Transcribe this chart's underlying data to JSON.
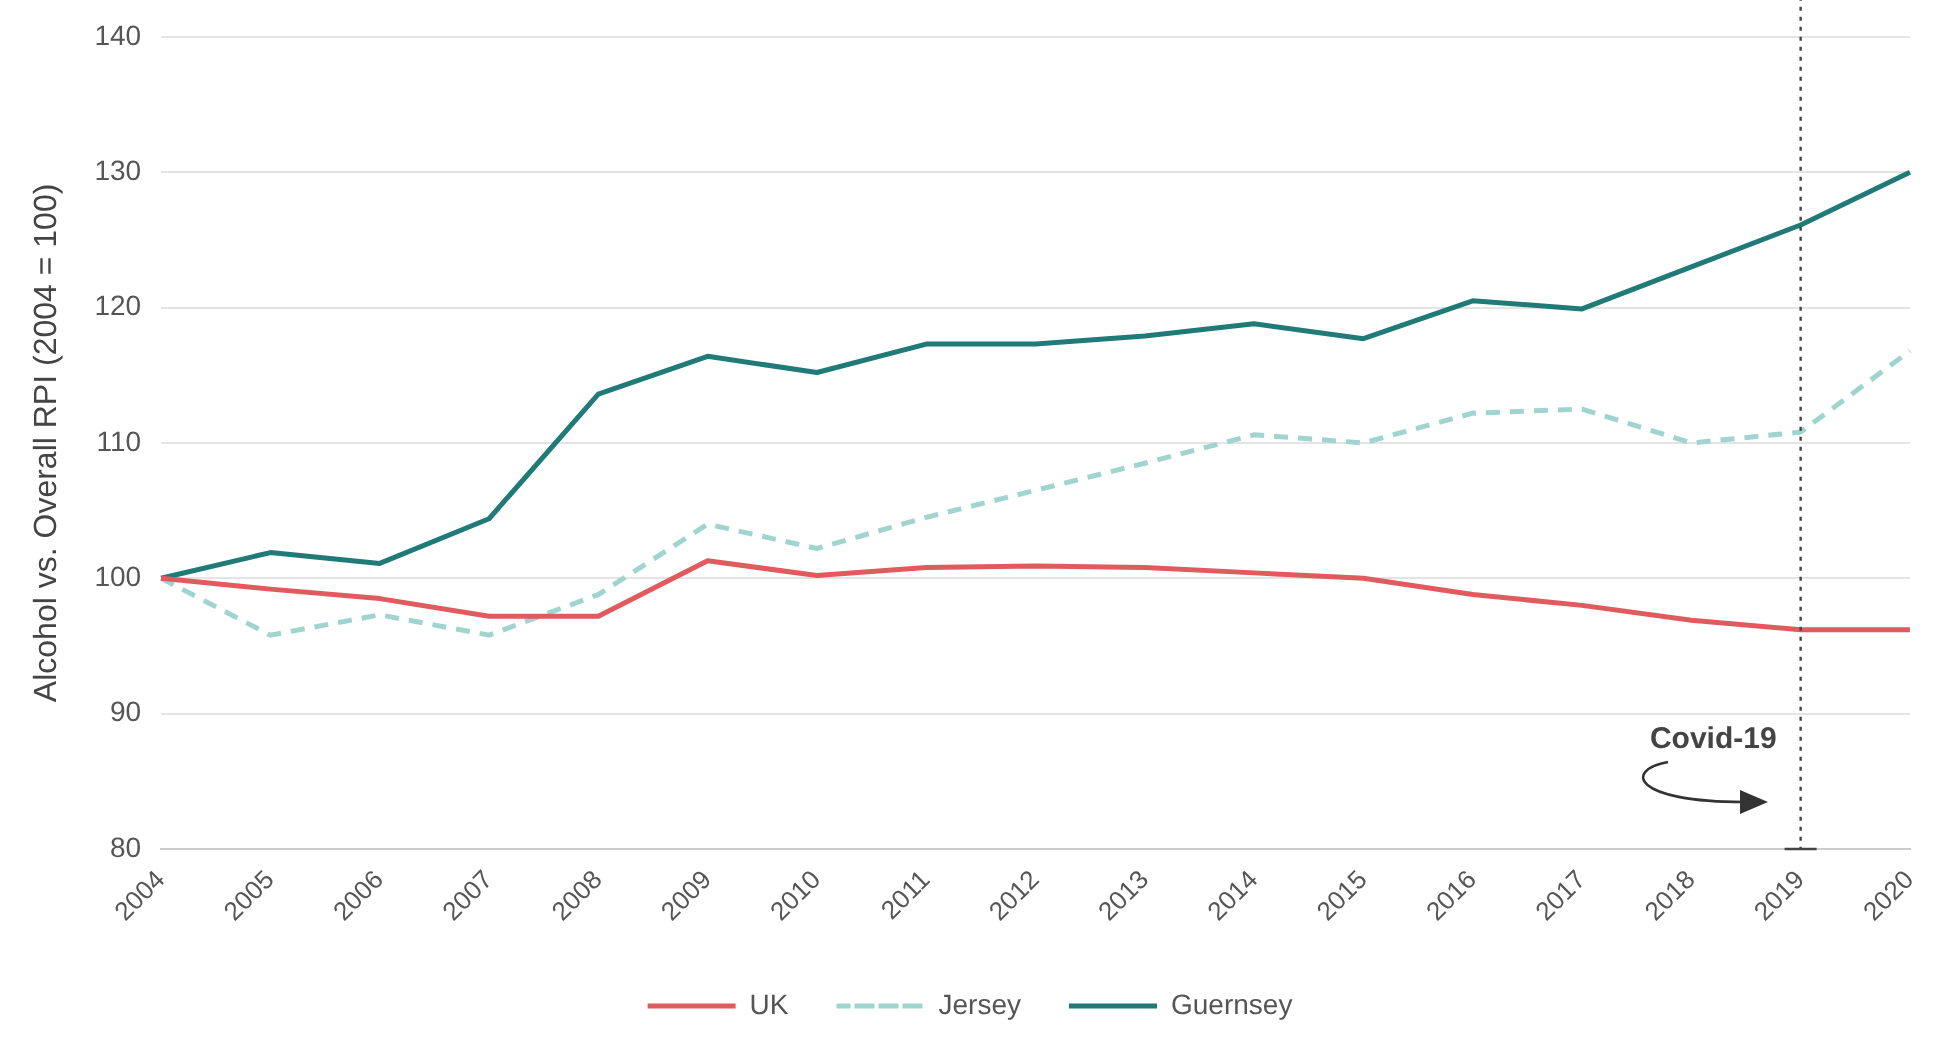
{
  "chart_data": {
    "type": "line",
    "ylabel": "Alcohol vs. Overall RPI (2004 = 100)",
    "categories": [
      "2004",
      "2005",
      "2006",
      "2007",
      "2008",
      "2009",
      "2010",
      "2011",
      "2012",
      "2013",
      "2014",
      "2015",
      "2016",
      "2017",
      "2018",
      "2019",
      "2020"
    ],
    "series": [
      {
        "name": "UK",
        "color": "#e05a5e",
        "values": [
          100,
          99.2,
          98.5,
          97.2,
          97.2,
          101.3,
          100.2,
          100.8,
          100.9,
          100.8,
          100.4,
          100.0,
          98.8,
          98.0,
          96.9,
          96.2,
          96.2
        ]
      },
      {
        "name": "Jersey",
        "color": "#9fd4cf",
        "line_style": "dashed",
        "values": [
          100,
          95.8,
          97.3,
          95.8,
          98.8,
          104,
          102.2,
          104.5,
          106.5,
          108.5,
          110.6,
          110,
          112.2,
          112.5,
          110,
          110.8,
          116.8
        ]
      },
      {
        "name": "Guernsey",
        "color": "#1f7a78",
        "values": [
          100,
          101.9,
          101.1,
          104.4,
          113.6,
          116.4,
          115.2,
          117.3,
          117.3,
          117.9,
          118.8,
          117.7,
          120.5,
          119.9,
          123,
          126.1,
          130
        ]
      }
    ],
    "ylim": [
      80,
      140
    ],
    "yticks": [
      80,
      90,
      100,
      110,
      120,
      130,
      140
    ],
    "grid": "y",
    "legend": "bottom",
    "marker": "none",
    "line_style": "solid",
    "ref_lines": [
      {
        "axis": "x",
        "value": "2019",
        "label": "Covid-19",
        "color": "#444444",
        "line_style": "dotted"
      }
    ]
  }
}
